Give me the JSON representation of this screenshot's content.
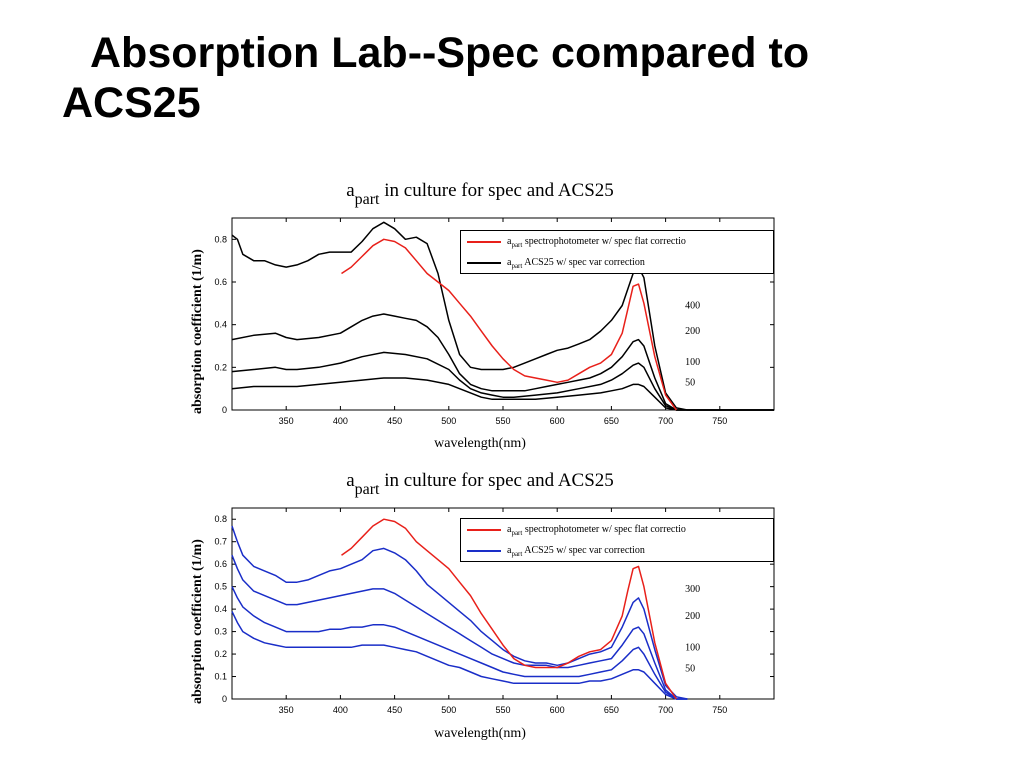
{
  "slide": {
    "title_line1": "Absorption Lab--Spec compared to",
    "title_line2": "ACS25"
  },
  "chart_data": [
    {
      "type": "line",
      "title_prefix": "a",
      "title_sub": "part",
      "title_rest": " in culture for spec and ACS25",
      "xlabel": "wavelength(nm)",
      "ylabel": "absorption coefficient (1/m)",
      "xlim": [
        300,
        800
      ],
      "ylim": [
        0,
        0.9
      ],
      "xticks": [
        350,
        400,
        450,
        500,
        550,
        600,
        650,
        700,
        750
      ],
      "yticks": [
        "0",
        "0.2",
        "0.4",
        "0.6",
        "0.8"
      ],
      "yticks_values": [
        0,
        0.2,
        0.4,
        0.6,
        0.8
      ],
      "legend": [
        {
          "prefix": "a",
          "sub": "part",
          "text": " spectrophotometer w/ spec flat correctio",
          "color": "#e8201a"
        },
        {
          "prefix": "a",
          "sub": "part",
          "text": " ACS25 w/ spec var correction",
          "color": "#000000"
        }
      ],
      "curve_labels": [
        {
          "text": "400",
          "x": 718,
          "y": 0.49
        },
        {
          "text": "200",
          "x": 718,
          "y": 0.37
        },
        {
          "text": "100",
          "x": 718,
          "y": 0.225
        },
        {
          "text": "50",
          "x": 718,
          "y": 0.128
        }
      ],
      "series": [
        {
          "name": "spectrophotometer",
          "color": "#e8201a",
          "x": [
            401,
            410,
            420,
            430,
            440,
            450,
            460,
            470,
            480,
            490,
            500,
            510,
            520,
            530,
            540,
            550,
            560,
            570,
            580,
            590,
            600,
            610,
            620,
            630,
            640,
            650,
            660,
            665,
            670,
            675,
            680,
            690,
            700,
            710
          ],
          "y": [
            0.64,
            0.67,
            0.72,
            0.77,
            0.8,
            0.79,
            0.76,
            0.7,
            0.64,
            0.6,
            0.56,
            0.5,
            0.44,
            0.37,
            0.3,
            0.24,
            0.19,
            0.16,
            0.15,
            0.14,
            0.13,
            0.14,
            0.17,
            0.2,
            0.22,
            0.26,
            0.36,
            0.47,
            0.58,
            0.59,
            0.5,
            0.25,
            0.07,
            0.0
          ]
        },
        {
          "name": "400",
          "color": "#000000",
          "x": [
            300,
            305,
            310,
            320,
            330,
            340,
            350,
            360,
            370,
            380,
            390,
            400,
            410,
            420,
            430,
            440,
            450,
            460,
            470,
            480,
            490,
            500,
            510,
            520,
            530,
            540,
            550,
            560,
            570,
            580,
            590,
            600,
            610,
            620,
            630,
            640,
            650,
            660,
            670,
            675,
            680,
            690,
            700,
            710,
            720,
            740,
            760,
            780,
            800
          ],
          "y": [
            0.82,
            0.8,
            0.73,
            0.7,
            0.7,
            0.68,
            0.67,
            0.68,
            0.7,
            0.73,
            0.74,
            0.74,
            0.74,
            0.79,
            0.85,
            0.88,
            0.85,
            0.8,
            0.81,
            0.78,
            0.64,
            0.42,
            0.26,
            0.2,
            0.19,
            0.19,
            0.19,
            0.2,
            0.22,
            0.24,
            0.26,
            0.28,
            0.29,
            0.31,
            0.33,
            0.37,
            0.42,
            0.49,
            0.64,
            0.67,
            0.62,
            0.3,
            0.08,
            0.01,
            0.0,
            0.0,
            0.0,
            0.0,
            0.0
          ]
        },
        {
          "name": "200",
          "color": "#000000",
          "x": [
            300,
            320,
            340,
            350,
            360,
            380,
            400,
            410,
            420,
            430,
            440,
            450,
            460,
            470,
            480,
            490,
            500,
            510,
            520,
            530,
            540,
            550,
            560,
            570,
            580,
            590,
            600,
            610,
            620,
            630,
            640,
            650,
            660,
            670,
            675,
            680,
            690,
            700,
            710,
            720,
            740,
            760,
            780,
            800
          ],
          "y": [
            0.33,
            0.35,
            0.36,
            0.34,
            0.33,
            0.34,
            0.36,
            0.39,
            0.42,
            0.44,
            0.45,
            0.44,
            0.43,
            0.42,
            0.39,
            0.34,
            0.26,
            0.17,
            0.12,
            0.1,
            0.09,
            0.09,
            0.09,
            0.09,
            0.1,
            0.11,
            0.12,
            0.13,
            0.14,
            0.15,
            0.17,
            0.2,
            0.25,
            0.32,
            0.33,
            0.3,
            0.15,
            0.03,
            0.0,
            0.0,
            0.0,
            0.0,
            0.0,
            0.0
          ]
        },
        {
          "name": "100",
          "color": "#000000",
          "x": [
            300,
            320,
            340,
            350,
            360,
            380,
            400,
            420,
            440,
            460,
            480,
            500,
            510,
            520,
            530,
            540,
            550,
            560,
            580,
            600,
            620,
            640,
            650,
            660,
            670,
            675,
            680,
            690,
            700,
            710,
            720,
            740,
            760,
            780,
            800
          ],
          "y": [
            0.18,
            0.19,
            0.2,
            0.19,
            0.19,
            0.2,
            0.22,
            0.25,
            0.27,
            0.26,
            0.24,
            0.19,
            0.14,
            0.1,
            0.08,
            0.07,
            0.06,
            0.06,
            0.07,
            0.08,
            0.1,
            0.12,
            0.14,
            0.17,
            0.21,
            0.22,
            0.2,
            0.1,
            0.02,
            0.0,
            0.0,
            0.0,
            0.0,
            0.0,
            0.0
          ]
        },
        {
          "name": "50",
          "color": "#000000",
          "x": [
            300,
            320,
            340,
            360,
            380,
            400,
            420,
            440,
            460,
            480,
            500,
            510,
            520,
            530,
            540,
            550,
            560,
            580,
            600,
            620,
            640,
            650,
            660,
            670,
            675,
            680,
            690,
            700,
            710,
            720,
            740,
            760,
            780,
            800
          ],
          "y": [
            0.1,
            0.11,
            0.11,
            0.11,
            0.12,
            0.13,
            0.14,
            0.15,
            0.15,
            0.14,
            0.12,
            0.1,
            0.08,
            0.06,
            0.05,
            0.05,
            0.05,
            0.05,
            0.06,
            0.07,
            0.08,
            0.09,
            0.1,
            0.12,
            0.12,
            0.11,
            0.06,
            0.01,
            0.0,
            0.0,
            0.0,
            0.0,
            0.0,
            0.0
          ]
        }
      ]
    },
    {
      "type": "line",
      "title_prefix": "a",
      "title_sub": "part",
      "title_rest": " in culture for spec and ACS25",
      "xlabel": "wavelength(nm)",
      "ylabel": "absorption coefficient (1/m)",
      "xlim": [
        300,
        800
      ],
      "ylim": [
        0,
        0.85
      ],
      "xticks": [
        350,
        400,
        450,
        500,
        550,
        600,
        650,
        700,
        750
      ],
      "yticks": [
        "0",
        "0.1",
        "0.2",
        "0.3",
        "0.4",
        "0.5",
        "0.6",
        "0.7",
        "0.8"
      ],
      "yticks_values": [
        0,
        0.1,
        0.2,
        0.3,
        0.4,
        0.5,
        0.6,
        0.7,
        0.8
      ],
      "legend": [
        {
          "prefix": "a",
          "sub": "part",
          "text": " spectrophotometer w/ spec flat correctio",
          "color": "#e8201a"
        },
        {
          "prefix": "a",
          "sub": "part",
          "text": " ACS25 w/ spec var correction",
          "color": "#1a2ec8"
        }
      ],
      "curve_labels": [
        {
          "text": "300",
          "x": 718,
          "y": 0.49
        },
        {
          "text": "200",
          "x": 718,
          "y": 0.37
        },
        {
          "text": "100",
          "x": 718,
          "y": 0.23
        },
        {
          "text": "50",
          "x": 718,
          "y": 0.135
        }
      ],
      "series": [
        {
          "name": "spectrophotometer",
          "color": "#e8201a",
          "x": [
            401,
            410,
            420,
            430,
            440,
            450,
            460,
            470,
            480,
            490,
            500,
            510,
            520,
            530,
            540,
            550,
            560,
            570,
            580,
            590,
            600,
            610,
            620,
            630,
            640,
            650,
            660,
            665,
            670,
            675,
            680,
            690,
            700,
            710
          ],
          "y": [
            0.64,
            0.67,
            0.72,
            0.77,
            0.8,
            0.79,
            0.76,
            0.7,
            0.66,
            0.62,
            0.58,
            0.52,
            0.46,
            0.38,
            0.31,
            0.24,
            0.18,
            0.15,
            0.14,
            0.14,
            0.14,
            0.16,
            0.19,
            0.21,
            0.22,
            0.26,
            0.37,
            0.48,
            0.58,
            0.59,
            0.5,
            0.25,
            0.07,
            0.0
          ]
        },
        {
          "name": "300",
          "color": "#1a2ec8",
          "x": [
            300,
            305,
            310,
            320,
            330,
            340,
            350,
            360,
            370,
            380,
            390,
            400,
            410,
            420,
            430,
            440,
            450,
            460,
            470,
            480,
            490,
            500,
            510,
            520,
            530,
            540,
            550,
            560,
            570,
            580,
            590,
            600,
            610,
            620,
            630,
            640,
            650,
            660,
            670,
            675,
            680,
            690,
            700,
            710,
            720
          ],
          "y": [
            0.77,
            0.7,
            0.64,
            0.59,
            0.57,
            0.55,
            0.52,
            0.52,
            0.53,
            0.55,
            0.57,
            0.58,
            0.6,
            0.62,
            0.66,
            0.67,
            0.65,
            0.62,
            0.57,
            0.51,
            0.47,
            0.43,
            0.39,
            0.35,
            0.3,
            0.26,
            0.22,
            0.19,
            0.17,
            0.16,
            0.16,
            0.15,
            0.16,
            0.18,
            0.2,
            0.21,
            0.23,
            0.32,
            0.43,
            0.45,
            0.4,
            0.22,
            0.06,
            0.01,
            0.0
          ]
        },
        {
          "name": "200",
          "color": "#1a2ec8",
          "x": [
            300,
            305,
            310,
            320,
            330,
            340,
            350,
            360,
            370,
            380,
            390,
            400,
            410,
            420,
            430,
            440,
            450,
            460,
            470,
            480,
            490,
            500,
            510,
            520,
            530,
            540,
            550,
            560,
            570,
            580,
            590,
            600,
            610,
            620,
            630,
            640,
            650,
            660,
            670,
            675,
            680,
            690,
            700,
            710,
            720
          ],
          "y": [
            0.64,
            0.58,
            0.53,
            0.48,
            0.46,
            0.44,
            0.42,
            0.42,
            0.43,
            0.44,
            0.45,
            0.46,
            0.47,
            0.48,
            0.49,
            0.49,
            0.47,
            0.44,
            0.41,
            0.38,
            0.35,
            0.32,
            0.29,
            0.26,
            0.23,
            0.2,
            0.18,
            0.16,
            0.15,
            0.15,
            0.15,
            0.14,
            0.14,
            0.15,
            0.16,
            0.17,
            0.18,
            0.24,
            0.31,
            0.32,
            0.29,
            0.16,
            0.04,
            0.0,
            0.0
          ]
        },
        {
          "name": "100",
          "color": "#1a2ec8",
          "x": [
            300,
            305,
            310,
            320,
            330,
            340,
            350,
            360,
            370,
            380,
            390,
            400,
            410,
            420,
            430,
            440,
            450,
            460,
            470,
            480,
            490,
            500,
            510,
            520,
            530,
            540,
            550,
            560,
            570,
            580,
            590,
            600,
            610,
            620,
            630,
            640,
            650,
            660,
            670,
            675,
            680,
            690,
            700,
            710,
            720
          ],
          "y": [
            0.5,
            0.45,
            0.41,
            0.37,
            0.34,
            0.32,
            0.3,
            0.3,
            0.3,
            0.3,
            0.31,
            0.31,
            0.32,
            0.32,
            0.33,
            0.33,
            0.32,
            0.3,
            0.28,
            0.26,
            0.24,
            0.22,
            0.2,
            0.18,
            0.16,
            0.14,
            0.12,
            0.11,
            0.1,
            0.1,
            0.1,
            0.1,
            0.1,
            0.1,
            0.11,
            0.12,
            0.13,
            0.17,
            0.22,
            0.23,
            0.2,
            0.11,
            0.03,
            0.0,
            0.0
          ]
        },
        {
          "name": "50",
          "color": "#1a2ec8",
          "x": [
            300,
            305,
            310,
            320,
            330,
            340,
            350,
            360,
            370,
            380,
            390,
            400,
            410,
            420,
            430,
            440,
            450,
            460,
            470,
            480,
            490,
            500,
            510,
            520,
            530,
            540,
            550,
            560,
            570,
            580,
            590,
            600,
            610,
            620,
            630,
            640,
            650,
            660,
            670,
            675,
            680,
            690,
            700,
            710,
            720
          ],
          "y": [
            0.39,
            0.34,
            0.3,
            0.27,
            0.25,
            0.24,
            0.23,
            0.23,
            0.23,
            0.23,
            0.23,
            0.23,
            0.23,
            0.24,
            0.24,
            0.24,
            0.23,
            0.22,
            0.21,
            0.19,
            0.17,
            0.15,
            0.14,
            0.12,
            0.1,
            0.09,
            0.08,
            0.07,
            0.07,
            0.07,
            0.07,
            0.07,
            0.07,
            0.07,
            0.08,
            0.08,
            0.09,
            0.11,
            0.13,
            0.13,
            0.12,
            0.07,
            0.02,
            0.0,
            0.0
          ]
        }
      ]
    }
  ]
}
